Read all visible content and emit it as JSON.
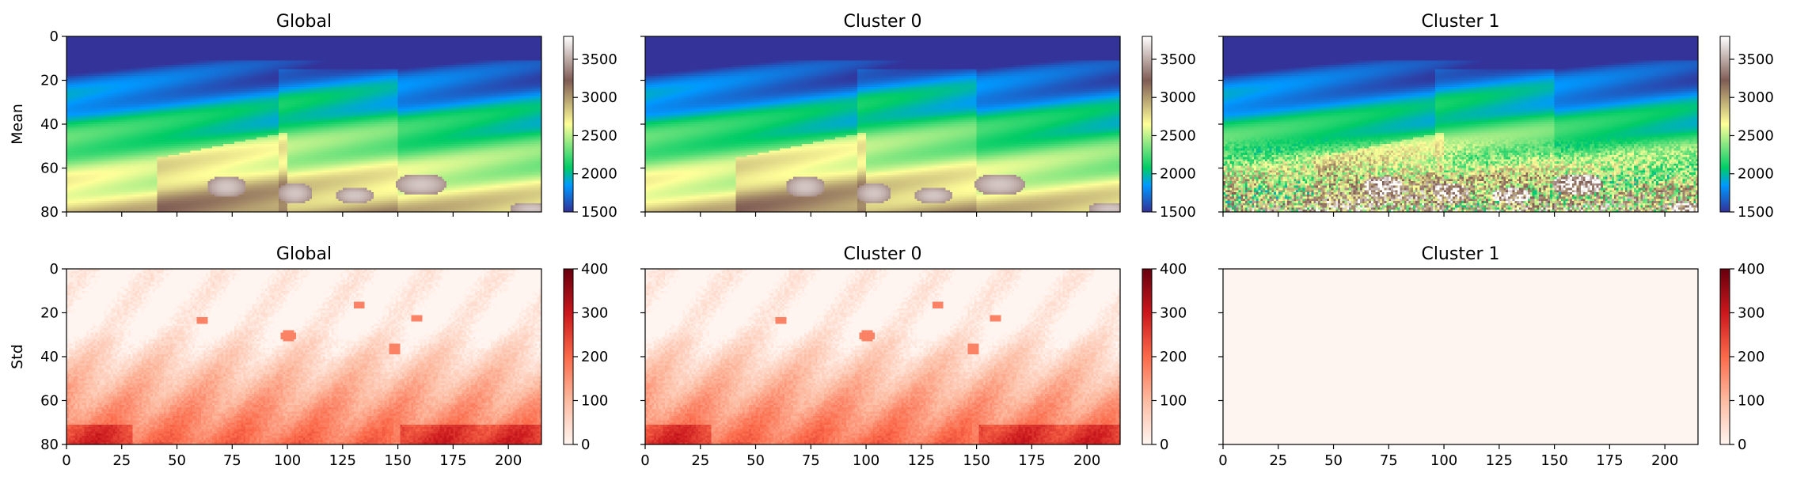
{
  "chart_data": {
    "type": "heatmap",
    "layout": {
      "rows": 2,
      "cols": 3,
      "sharex": true
    },
    "rows": [
      {
        "ylabel": "Mean",
        "colormap": "terrain",
        "colorbar": {
          "range": [
            1500,
            3800
          ],
          "ticks": [
            "1500",
            "2000",
            "2500",
            "3000",
            "3500"
          ]
        },
        "panels": [
          {
            "title": "Global",
            "field": "velocity-mean-global"
          },
          {
            "title": "Cluster 0",
            "field": "velocity-mean-cluster0"
          },
          {
            "title": "Cluster 1",
            "field": "velocity-mean-cluster1"
          }
        ]
      },
      {
        "ylabel": "Std",
        "colormap": "Reds",
        "colorbar": {
          "range": [
            0,
            400
          ],
          "ticks": [
            "0",
            "100",
            "200",
            "300",
            "400"
          ]
        },
        "panels": [
          {
            "title": "Global",
            "field": "velocity-std-global"
          },
          {
            "title": "Cluster 0",
            "field": "velocity-std-cluster0"
          },
          {
            "title": "Cluster 1",
            "field": "velocity-std-cluster1-uniform-0"
          }
        ]
      }
    ],
    "x_axis": {
      "range": [
        0,
        215
      ],
      "ticks": [
        "0",
        "25",
        "50",
        "75",
        "100",
        "125",
        "150",
        "175",
        "200"
      ]
    },
    "y_axis": {
      "range": [
        0,
        80
      ],
      "inverted": true,
      "ticks": [
        "0",
        "20",
        "40",
        "60",
        "80"
      ]
    },
    "colors": {
      "terrain_low": "#333399",
      "terrain_mid": "#33cc66",
      "terrain_high": "#ffffff",
      "reds_low": "#fff5f0",
      "reds_high": "#67000d"
    }
  }
}
